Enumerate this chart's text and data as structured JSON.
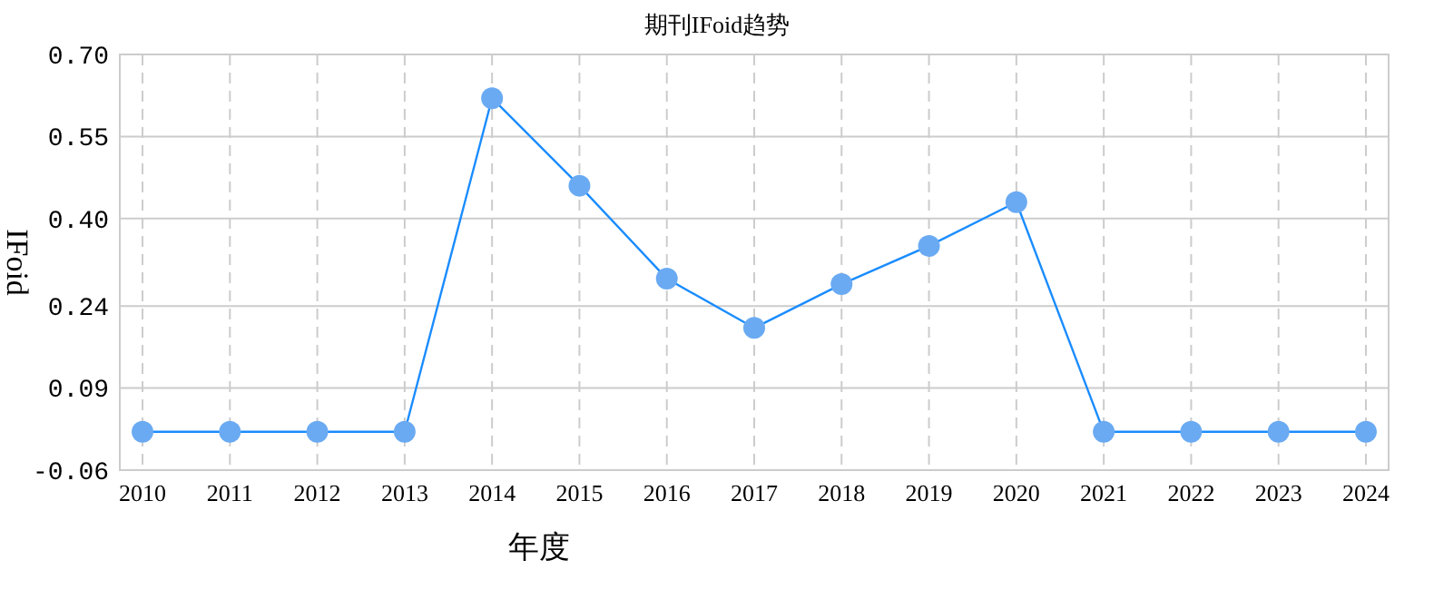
{
  "chart_data": {
    "type": "line",
    "title": "期刊IFoid趋势",
    "xlabel": "年度",
    "ylabel": "IFoid",
    "categories": [
      "2010",
      "2011",
      "2012",
      "2013",
      "2014",
      "2015",
      "2016",
      "2017",
      "2018",
      "2019",
      "2020",
      "2021",
      "2022",
      "2023",
      "2024"
    ],
    "series": [
      {
        "color": "#1a8cff",
        "values": [
          0.01,
          0.01,
          0.01,
          0.01,
          0.62,
          0.46,
          0.29,
          0.2,
          0.28,
          0.35,
          0.43,
          0.01,
          0.01,
          0.01,
          0.01
        ]
      }
    ],
    "ylim": [
      -0.06,
      0.7
    ],
    "yticks": [
      {
        "value": -0.06,
        "label": "-0.06"
      },
      {
        "value": 0.09,
        "label": "0.09"
      },
      {
        "value": 0.24,
        "label": "0.24"
      },
      {
        "value": 0.4,
        "label": "0.40"
      },
      {
        "value": 0.55,
        "label": "0.55"
      },
      {
        "value": 0.7,
        "label": "0.70"
      }
    ],
    "grid": true,
    "marker": "circle",
    "line_style": "solid"
  }
}
